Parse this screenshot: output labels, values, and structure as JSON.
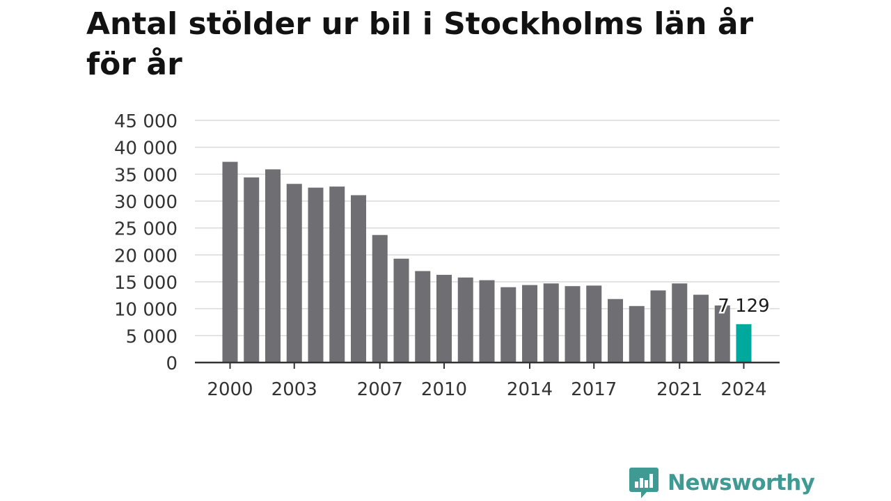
{
  "title": "Antal stölder ur bil i Stockholms län år för år",
  "brand": {
    "name": "Newsworthy",
    "icon": "bar-chart-speech-bubble-icon",
    "color": "#3e9a93"
  },
  "chart_data": {
    "type": "bar",
    "title": "Antal stölder ur bil i Stockholms län år för år",
    "xlabel": "",
    "ylabel": "",
    "ylim": [
      0,
      45000
    ],
    "y_ticks": [
      0,
      5000,
      10000,
      15000,
      20000,
      25000,
      30000,
      35000,
      40000,
      45000
    ],
    "y_tick_labels": [
      "0",
      "5 000",
      "10 000",
      "15 000",
      "20 000",
      "25 000",
      "30 000",
      "35 000",
      "40 000",
      "45 000"
    ],
    "x_tick_labels": [
      "2000",
      "2003",
      "2007",
      "2010",
      "2014",
      "2017",
      "2021",
      "2024"
    ],
    "categories": [
      2000,
      2001,
      2002,
      2003,
      2004,
      2005,
      2006,
      2007,
      2008,
      2009,
      2010,
      2011,
      2012,
      2013,
      2014,
      2015,
      2016,
      2017,
      2018,
      2019,
      2020,
      2021,
      2022,
      2023,
      2024
    ],
    "values": [
      37300,
      34400,
      35900,
      33200,
      32500,
      32700,
      31100,
      23700,
      19300,
      17000,
      16300,
      15800,
      15300,
      14000,
      14400,
      14700,
      14200,
      14300,
      11800,
      10500,
      13400,
      14700,
      12600,
      10600,
      7129
    ],
    "highlight": {
      "category": 2024,
      "label": "7 129"
    },
    "grid": true,
    "colors": {
      "bar": "#6f6e73",
      "highlight": "#00a99d",
      "grid": "#d9d9d9",
      "axis": "#333333",
      "text": "#333333"
    }
  }
}
